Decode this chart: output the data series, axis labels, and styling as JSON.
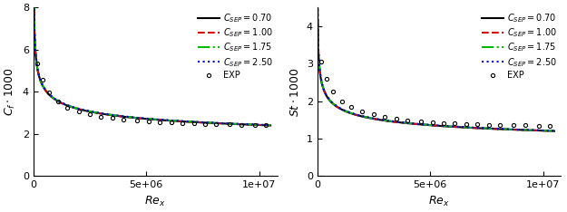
{
  "xlim": [
    0,
    10800000.0
  ],
  "ylim_left": [
    0,
    8
  ],
  "ylim_right": [
    0,
    4.5
  ],
  "yticks_left": [
    0,
    2,
    4,
    6,
    8
  ],
  "yticks_right": [
    0,
    1,
    2,
    3,
    4
  ],
  "lines": [
    {
      "csep": 0.7,
      "color": "#000000",
      "lw": 1.5,
      "ls": "solid"
    },
    {
      "csep": 1.0,
      "color": "#dd0000",
      "lw": 1.5,
      "ls": "dashed"
    },
    {
      "csep": 1.75,
      "color": "#00bb00",
      "lw": 1.5,
      "ls": "dashdot"
    },
    {
      "csep": 2.5,
      "color": "#0000dd",
      "lw": 1.5,
      "ls": "dotted"
    }
  ],
  "legend_labels": [
    "$C_{SEP} = 0.70$",
    "$C_{SEP} = 1.00$",
    "$C_{SEP} = 1.75$",
    "$C_{SEP} = 2.50$",
    "EXP"
  ],
  "exp_cf": {
    "rex": [
      180000.0,
      400000.0,
      700000.0,
      1100000.0,
      1500000.0,
      2000000.0,
      2500000.0,
      3000000.0,
      3500000.0,
      4000000.0,
      4600000.0,
      5100000.0,
      5600000.0,
      6100000.0,
      6600000.0,
      7100000.0,
      7600000.0,
      8100000.0,
      8700000.0,
      9200000.0,
      9800000.0,
      10300000.0
    ],
    "cf": [
      5.35,
      4.55,
      3.95,
      3.55,
      3.25,
      3.05,
      2.92,
      2.82,
      2.75,
      2.69,
      2.64,
      2.6,
      2.57,
      2.54,
      2.52,
      2.5,
      2.48,
      2.47,
      2.45,
      2.44,
      2.42,
      2.4
    ]
  },
  "exp_st": {
    "rex": [
      180000.0,
      400000.0,
      700000.0,
      1100000.0,
      1500000.0,
      2000000.0,
      2500000.0,
      3000000.0,
      3500000.0,
      4000000.0,
      4600000.0,
      5100000.0,
      5600000.0,
      6100000.0,
      6600000.0,
      7100000.0,
      7600000.0,
      8100000.0,
      8700000.0,
      9200000.0,
      9800000.0,
      10300000.0
    ],
    "st": [
      3.05,
      2.6,
      2.25,
      2.0,
      1.85,
      1.73,
      1.64,
      1.58,
      1.53,
      1.49,
      1.46,
      1.44,
      1.42,
      1.4,
      1.39,
      1.38,
      1.37,
      1.365,
      1.355,
      1.35,
      1.345,
      1.34
    ]
  },
  "background_color": "#ffffff"
}
